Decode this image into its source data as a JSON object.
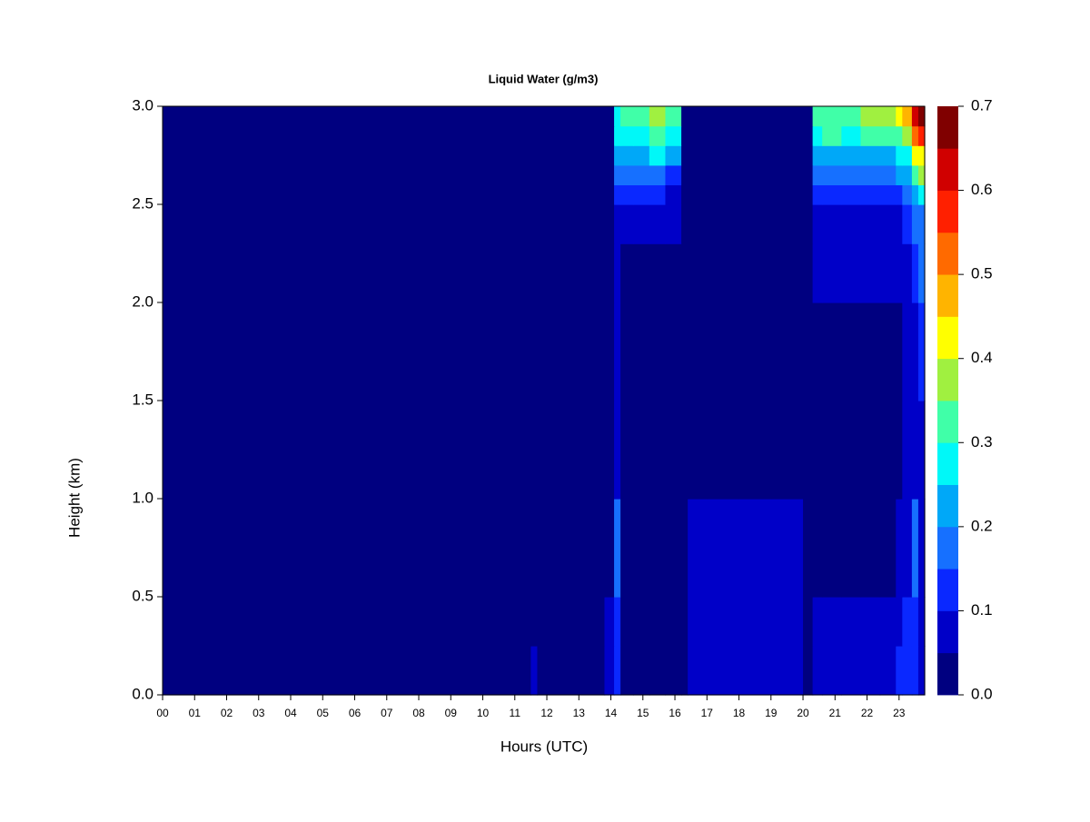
{
  "chart_data": {
    "type": "heatmap",
    "title": "Liquid Water (g/m3)",
    "xlabel": "Hours (UTC)",
    "ylabel": "Height (km)",
    "xlim": [
      0,
      23.8
    ],
    "ylim": [
      0,
      3
    ],
    "xticks": [
      {
        "value": 0,
        "label": "00"
      },
      {
        "value": 1,
        "label": "01"
      },
      {
        "value": 2,
        "label": "02"
      },
      {
        "value": 3,
        "label": "03"
      },
      {
        "value": 4,
        "label": "04"
      },
      {
        "value": 5,
        "label": "05"
      },
      {
        "value": 6,
        "label": "06"
      },
      {
        "value": 7,
        "label": "07"
      },
      {
        "value": 8,
        "label": "08"
      },
      {
        "value": 9,
        "label": "09"
      },
      {
        "value": 10,
        "label": "10"
      },
      {
        "value": 11,
        "label": "11"
      },
      {
        "value": 12,
        "label": "12"
      },
      {
        "value": 13,
        "label": "13"
      },
      {
        "value": 14,
        "label": "14"
      },
      {
        "value": 15,
        "label": "15"
      },
      {
        "value": 16,
        "label": "16"
      },
      {
        "value": 17,
        "label": "17"
      },
      {
        "value": 18,
        "label": "18"
      },
      {
        "value": 19,
        "label": "19"
      },
      {
        "value": 20,
        "label": "20"
      },
      {
        "value": 21,
        "label": "21"
      },
      {
        "value": 22,
        "label": "22"
      },
      {
        "value": 23,
        "label": "23"
      }
    ],
    "yticks": [
      {
        "value": 0,
        "label": "0.0"
      },
      0.5,
      {
        "value": 1,
        "label": "1.0"
      },
      1.5,
      {
        "value": 2,
        "label": "2.0"
      },
      2.5,
      {
        "value": 3,
        "label": "3.0"
      }
    ],
    "x_edges": [
      0,
      11.5,
      11.7,
      13.8,
      14.1,
      14.3,
      14.7,
      15.2,
      15.7,
      16.2,
      16.4,
      17,
      18,
      19,
      20,
      20.3,
      20.6,
      21.2,
      21.8,
      22.4,
      22.9,
      23.1,
      23.4,
      23.6,
      23.8
    ],
    "y_edges": [
      0,
      0.25,
      0.5,
      1.0,
      1.5,
      2.0,
      2.3,
      2.5,
      2.6,
      2.7,
      2.8,
      2.9,
      3.0
    ],
    "z": [
      [
        0.02,
        0.06,
        0.02,
        0.06,
        0.12,
        0.02,
        0.02,
        0.02,
        0.02,
        0.02,
        0.07,
        0.08,
        0.09,
        0.07,
        0.02,
        0.07,
        0.08,
        0.07,
        0.07,
        0.07,
        0.12,
        0.12,
        0.12,
        0.06
      ],
      [
        0.02,
        0.02,
        0.02,
        0.06,
        0.12,
        0.02,
        0.02,
        0.02,
        0.02,
        0.02,
        0.07,
        0.08,
        0.07,
        0.07,
        0.02,
        0.06,
        0.06,
        0.06,
        0.06,
        0.06,
        0.08,
        0.1,
        0.1,
        0.06
      ],
      [
        0.02,
        0.02,
        0.02,
        0.02,
        0.15,
        0.02,
        0.02,
        0.02,
        0.02,
        0.02,
        0.06,
        0.06,
        0.06,
        0.06,
        0.02,
        0.02,
        0.02,
        0.02,
        0.02,
        0.02,
        0.06,
        0.08,
        0.15,
        0.08
      ],
      [
        0.02,
        0.02,
        0.02,
        0.02,
        0.08,
        0.02,
        0.02,
        0.02,
        0.02,
        0.02,
        0.02,
        0.02,
        0.02,
        0.02,
        0.02,
        0.02,
        0.02,
        0.02,
        0.02,
        0.02,
        0.02,
        0.06,
        0.06,
        0.06
      ],
      [
        0.02,
        0.02,
        0.02,
        0.02,
        0.06,
        0.02,
        0.02,
        0.02,
        0.02,
        0.02,
        0.02,
        0.02,
        0.02,
        0.02,
        0.02,
        0.02,
        0.02,
        0.02,
        0.02,
        0.02,
        0.02,
        0.06,
        0.08,
        0.1
      ],
      [
        0.02,
        0.02,
        0.02,
        0.02,
        0.06,
        0.02,
        0.02,
        0.02,
        0.02,
        0.02,
        0.02,
        0.02,
        0.02,
        0.02,
        0.02,
        0.06,
        0.07,
        0.07,
        0.07,
        0.07,
        0.06,
        0.08,
        0.12,
        0.15
      ],
      [
        0.02,
        0.02,
        0.02,
        0.02,
        0.08,
        0.07,
        0.07,
        0.08,
        0.06,
        0.02,
        0.02,
        0.02,
        0.02,
        0.02,
        0.02,
        0.07,
        0.08,
        0.08,
        0.08,
        0.08,
        0.09,
        0.1,
        0.15,
        0.18
      ],
      [
        0.02,
        0.02,
        0.02,
        0.02,
        0.1,
        0.12,
        0.12,
        0.13,
        0.08,
        0.02,
        0.02,
        0.02,
        0.02,
        0.02,
        0.02,
        0.12,
        0.12,
        0.12,
        0.13,
        0.12,
        0.14,
        0.15,
        0.22,
        0.25
      ],
      [
        0.02,
        0.02,
        0.02,
        0.02,
        0.15,
        0.15,
        0.17,
        0.18,
        0.13,
        0.02,
        0.02,
        0.02,
        0.02,
        0.02,
        0.02,
        0.15,
        0.17,
        0.17,
        0.18,
        0.18,
        0.2,
        0.22,
        0.3,
        0.35
      ],
      [
        0.02,
        0.02,
        0.02,
        0.02,
        0.2,
        0.2,
        0.22,
        0.25,
        0.2,
        0.02,
        0.02,
        0.02,
        0.02,
        0.02,
        0.02,
        0.2,
        0.22,
        0.22,
        0.24,
        0.24,
        0.25,
        0.28,
        0.4,
        0.42
      ],
      [
        0.02,
        0.02,
        0.02,
        0.02,
        0.25,
        0.25,
        0.28,
        0.3,
        0.27,
        0.02,
        0.02,
        0.02,
        0.02,
        0.02,
        0.02,
        0.25,
        0.3,
        0.28,
        0.3,
        0.3,
        0.33,
        0.38,
        0.5,
        0.55
      ],
      [
        0.02,
        0.02,
        0.02,
        0.02,
        0.28,
        0.3,
        0.33,
        0.37,
        0.33,
        0.02,
        0.02,
        0.02,
        0.02,
        0.02,
        0.02,
        0.3,
        0.33,
        0.32,
        0.35,
        0.38,
        0.42,
        0.48,
        0.6,
        0.68
      ]
    ],
    "levels": [
      0,
      0.05,
      0.1,
      0.15,
      0.2,
      0.25,
      0.3,
      0.35,
      0.4,
      0.45,
      0.5,
      0.55,
      0.6,
      0.65,
      0.7
    ],
    "colors": [
      "#000080",
      "#0000c8",
      "#0a28ff",
      "#1670ff",
      "#00a8f8",
      "#00f8f8",
      "#40ffa8",
      "#a0f040",
      "#ffff00",
      "#ffb400",
      "#ff6a00",
      "#ff2000",
      "#d00000",
      "#800000"
    ],
    "colorbar_ticks": [
      {
        "value": 0,
        "label": "0.0"
      },
      0.1,
      0.2,
      0.3,
      0.4,
      0.5,
      0.6,
      0.7
    ]
  }
}
